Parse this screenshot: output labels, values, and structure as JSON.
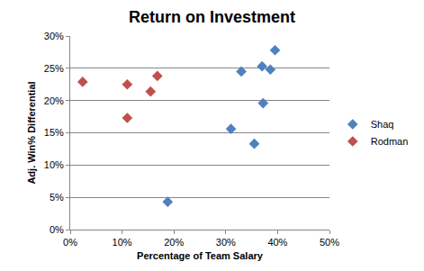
{
  "chart_data": {
    "type": "scatter",
    "title": "Return on Investment",
    "x_label": "Percentage of Team Salary",
    "y_label": "Adj. Win% Differential",
    "xlim": [
      0,
      50
    ],
    "xticks": [
      {
        "value": 0,
        "label": "0%"
      },
      {
        "value": 10,
        "label": "10%"
      },
      {
        "value": 20,
        "label": "20%"
      },
      {
        "value": 30,
        "label": "30%"
      },
      {
        "value": 40,
        "label": "40%"
      },
      {
        "value": 50,
        "label": "50%"
      }
    ],
    "ylim": [
      0,
      30
    ],
    "yticks": [
      {
        "value": 0,
        "label": "0%"
      },
      {
        "value": 5,
        "label": "5%"
      },
      {
        "value": 10,
        "label": "10%"
      },
      {
        "value": 15,
        "label": "15%"
      },
      {
        "value": 20,
        "label": "20%"
      },
      {
        "value": 25,
        "label": "25%"
      },
      {
        "value": 30,
        "label": "30%"
      }
    ],
    "grid": "y",
    "legend": "right",
    "marker": "diamond",
    "series": [
      {
        "name": "Shaq",
        "color": "#4f81bd",
        "x": [
          18.8,
          31.0,
          33.0,
          35.5,
          37.0,
          37.2,
          38.6,
          39.5
        ],
        "values": [
          4.3,
          15.6,
          24.5,
          13.3,
          25.3,
          19.6,
          24.8,
          27.8
        ]
      },
      {
        "name": "Rodman",
        "color": "#c0504d",
        "x": [
          2.4,
          11.0,
          11.0,
          15.5,
          16.8
        ],
        "values": [
          22.9,
          22.5,
          17.3,
          21.4,
          23.8
        ]
      }
    ]
  }
}
